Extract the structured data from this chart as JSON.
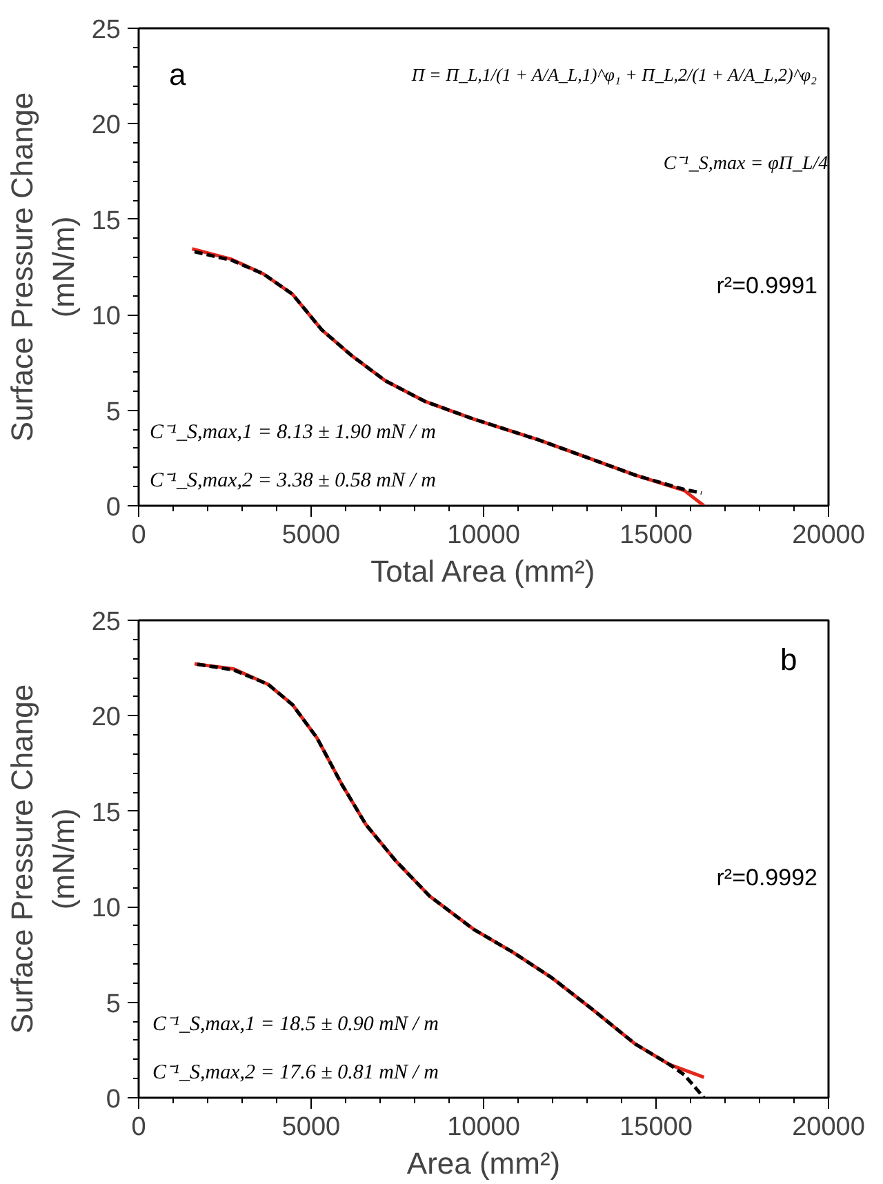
{
  "chart_data": [
    {
      "type": "line",
      "xlabel": "Total Area (mm²)",
      "ylabel": "Surface Pressure Change\n(mN/m)",
      "xlim": [
        0,
        20000
      ],
      "ylim": [
        0,
        25
      ],
      "xticks": [
        0,
        5000,
        10000,
        15000,
        20000
      ],
      "yticks": [
        0,
        5,
        10,
        15,
        20,
        25
      ],
      "grid": false,
      "annotations": [
        "a",
        "Π = Π_L,1/(1 + A/A_L,1)^φ₁ + Π_L,2/(1 + A/A_L,2)^φ₂",
        "C⁻¹_S,max = φΠ_L/4",
        "r²=0.9991",
        "C⁻¹_S,max,1 = 8.13 ± 1.90 mN / m",
        "C⁻¹_S,max,2 = 3.38 ± 0.58 mN / m"
      ],
      "series": [
        {
          "color": "#e3261b",
          "line_style": "solid",
          "x": [
            1550,
            2700,
            3607,
            4458,
            5310,
            6163,
            7157,
            8293,
            9711,
            11560,
            12980,
            14400,
            15820,
            16390
          ],
          "values": [
            13.45,
            12.9,
            12.15,
            11.08,
            9.21,
            7.88,
            6.54,
            5.47,
            4.54,
            3.47,
            2.54,
            1.6,
            0.8,
            0.0
          ]
        },
        {
          "color": "#000000",
          "line_style": "dashed",
          "x": [
            1620,
            2700,
            3607,
            4458,
            5310,
            6163,
            7157,
            8293,
            9711,
            11560,
            12980,
            14400,
            15820,
            16320
          ],
          "values": [
            13.3,
            12.85,
            12.15,
            11.08,
            9.21,
            7.88,
            6.54,
            5.47,
            4.54,
            3.47,
            2.54,
            1.6,
            0.85,
            0.67
          ]
        }
      ]
    },
    {
      "type": "line",
      "xlabel": "Area (mm²)",
      "ylabel": "Surface Pressure Change\n(mN/m)",
      "xlim": [
        0,
        20000
      ],
      "ylim": [
        0,
        25
      ],
      "xticks": [
        0,
        5000,
        10000,
        15000,
        20000
      ],
      "yticks": [
        0,
        5,
        10,
        15,
        20,
        25
      ],
      "grid": false,
      "annotations": [
        "b",
        "r²=0.9992",
        "C⁻¹_S,max,1 = 18.5 ± 0.90 mN / m",
        "C⁻¹_S,max,2 = 17.6 ± 0.81 mN / m"
      ],
      "series": [
        {
          "color": "#e3261b",
          "line_style": "solid",
          "x": [
            1620,
            2755,
            3750,
            4460,
            5170,
            5880,
            6590,
            7440,
            8435,
            9711,
            10850,
            11980,
            13120,
            14400,
            15390,
            16390
          ],
          "values": [
            22.72,
            22.45,
            21.65,
            20.58,
            18.84,
            16.44,
            14.3,
            12.43,
            10.56,
            8.82,
            7.62,
            6.28,
            4.68,
            2.81,
            1.74,
            1.07
          ]
        },
        {
          "color": "#000000",
          "line_style": "dashed",
          "x": [
            1700,
            2755,
            3750,
            4460,
            5170,
            5880,
            6590,
            7440,
            8435,
            9711,
            10850,
            11980,
            13120,
            14400,
            15390,
            15820,
            16390
          ],
          "values": [
            22.7,
            22.4,
            21.65,
            20.58,
            18.84,
            16.44,
            14.3,
            12.43,
            10.56,
            8.82,
            7.62,
            6.28,
            4.68,
            2.81,
            1.74,
            1.2,
            0.0
          ]
        }
      ]
    }
  ]
}
